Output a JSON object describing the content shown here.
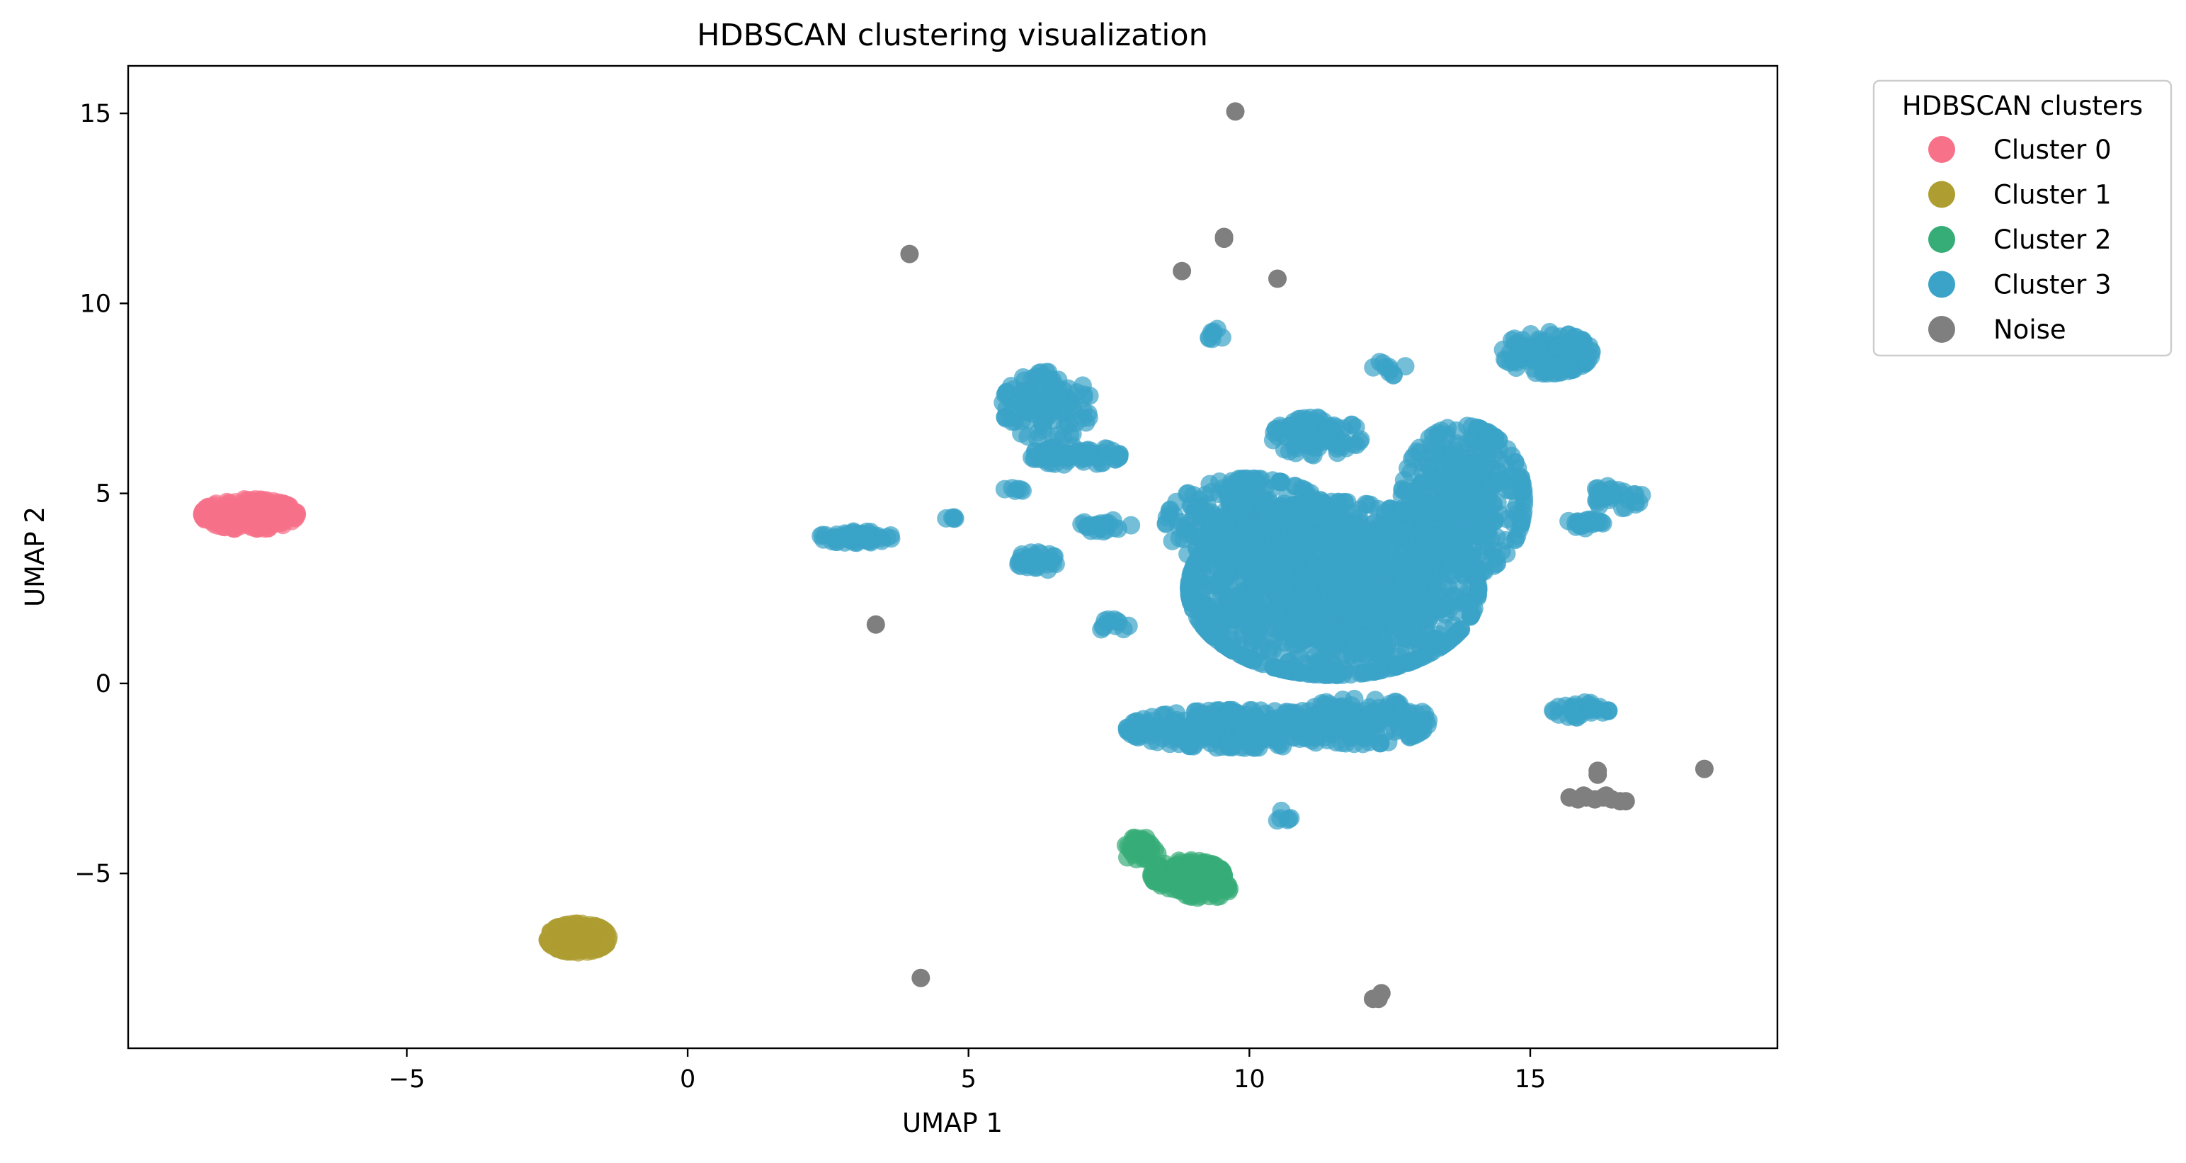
{
  "chart_data": {
    "type": "scatter",
    "title": "HDBSCAN clustering visualization",
    "xlabel": "UMAP 1",
    "ylabel": "UMAP 2",
    "xlim": [
      -9.96,
      19.4
    ],
    "ylim": [
      -9.6,
      16.25
    ],
    "xticks": [
      -5,
      0,
      5,
      10,
      15
    ],
    "yticks": [
      -5,
      0,
      5,
      10,
      15
    ],
    "grid": false,
    "legend": {
      "title": "HDBSCAN clusters",
      "placement": "outside-top-right",
      "entries": [
        "Cluster 0",
        "Cluster 1",
        "Cluster 2",
        "Cluster 3",
        "Noise"
      ]
    },
    "marker_alpha": 0.7,
    "series": [
      {
        "name": "Cluster 0",
        "color": "#f77189",
        "blobs": [
          {
            "cx": -7.8,
            "cy": 4.45,
            "rx": 0.85,
            "ry": 0.4,
            "n": 320
          }
        ]
      },
      {
        "name": "Cluster 1",
        "color": "#ae9d31",
        "blobs": [
          {
            "cx": -1.95,
            "cy": -6.7,
            "rx": 0.55,
            "ry": 0.38,
            "n": 220
          }
        ]
      },
      {
        "name": "Cluster 2",
        "color": "#36ad77",
        "blobs": [
          {
            "cx": 8.9,
            "cy": -5.05,
            "rx": 0.65,
            "ry": 0.4,
            "n": 160
          },
          {
            "cx": 8.05,
            "cy": -4.35,
            "rx": 0.35,
            "ry": 0.3,
            "n": 50
          },
          {
            "cx": 9.2,
            "cy": -5.4,
            "rx": 0.45,
            "ry": 0.25,
            "n": 70
          }
        ]
      },
      {
        "name": "Cluster 3",
        "color": "#3ba3c8",
        "blobs": [
          {
            "cx": 11.5,
            "cy": 2.5,
            "rx": 2.6,
            "ry": 2.3,
            "n": 1400
          },
          {
            "cx": 13.8,
            "cy": 4.8,
            "rx": 1.1,
            "ry": 2.0,
            "n": 450
          },
          {
            "cx": 10.0,
            "cy": 4.2,
            "rx": 1.5,
            "ry": 1.2,
            "n": 280
          },
          {
            "cx": 9.8,
            "cy": -1.2,
            "rx": 2.0,
            "ry": 0.5,
            "n": 280
          },
          {
            "cx": 12.0,
            "cy": -1.0,
            "rx": 1.2,
            "ry": 0.6,
            "n": 150
          },
          {
            "cx": 15.3,
            "cy": 8.7,
            "rx": 0.8,
            "ry": 0.55,
            "n": 120
          },
          {
            "cx": 6.4,
            "cy": 7.3,
            "rx": 0.8,
            "ry": 0.9,
            "n": 120
          },
          {
            "cx": 6.9,
            "cy": 6.0,
            "rx": 0.8,
            "ry": 0.25,
            "n": 70
          },
          {
            "cx": 11.2,
            "cy": 6.5,
            "rx": 0.8,
            "ry": 0.5,
            "n": 90
          },
          {
            "cx": 3.0,
            "cy": 3.85,
            "rx": 0.65,
            "ry": 0.15,
            "n": 55
          },
          {
            "cx": 6.2,
            "cy": 3.2,
            "rx": 0.4,
            "ry": 0.25,
            "n": 35
          },
          {
            "cx": 15.9,
            "cy": -0.7,
            "rx": 0.5,
            "ry": 0.2,
            "n": 35
          },
          {
            "cx": 16.5,
            "cy": 4.9,
            "rx": 0.5,
            "ry": 0.3,
            "n": 30
          },
          {
            "cx": 15.9,
            "cy": 4.2,
            "rx": 0.4,
            "ry": 0.12,
            "n": 25
          },
          {
            "cx": 7.4,
            "cy": 4.15,
            "rx": 0.5,
            "ry": 0.15,
            "n": 25
          },
          {
            "cx": 7.6,
            "cy": 1.5,
            "rx": 0.3,
            "ry": 0.2,
            "n": 12
          },
          {
            "cx": 10.6,
            "cy": -3.5,
            "rx": 0.15,
            "ry": 0.15,
            "n": 6
          },
          {
            "cx": 9.4,
            "cy": 9.2,
            "rx": 0.2,
            "ry": 0.15,
            "n": 8
          },
          {
            "cx": 12.5,
            "cy": 8.3,
            "rx": 0.3,
            "ry": 0.2,
            "n": 10
          },
          {
            "cx": 4.7,
            "cy": 4.35,
            "rx": 0.1,
            "ry": 0.05,
            "n": 5
          },
          {
            "cx": 5.8,
            "cy": 5.1,
            "rx": 0.2,
            "ry": 0.05,
            "n": 6
          }
        ]
      },
      {
        "name": "Noise",
        "color": "#7f7f7f",
        "points": [
          [
            9.75,
            15.05
          ],
          [
            3.95,
            11.3
          ],
          [
            9.55,
            11.7
          ],
          [
            9.55,
            11.75
          ],
          [
            8.8,
            10.85
          ],
          [
            10.5,
            10.65
          ],
          [
            3.35,
            1.55
          ],
          [
            4.15,
            -7.75
          ],
          [
            12.35,
            -8.15
          ],
          [
            12.3,
            -8.3
          ],
          [
            12.2,
            -8.3
          ],
          [
            16.2,
            -2.3
          ],
          [
            16.2,
            -2.4
          ],
          [
            18.1,
            -2.25
          ],
          [
            15.7,
            -3.0
          ],
          [
            15.85,
            -3.05
          ],
          [
            16.0,
            -3.0
          ],
          [
            16.15,
            -3.05
          ],
          [
            16.3,
            -3.0
          ],
          [
            16.45,
            -3.05
          ],
          [
            16.6,
            -3.1
          ],
          [
            16.7,
            -3.1
          ],
          [
            15.95,
            -2.95
          ],
          [
            16.35,
            -2.95
          ]
        ]
      }
    ]
  }
}
